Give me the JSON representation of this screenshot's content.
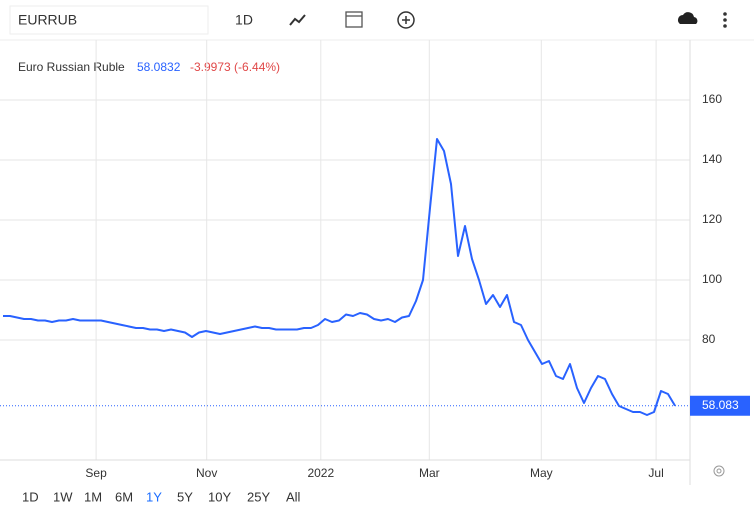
{
  "toolbar": {
    "symbol": "EURRUB",
    "interval": "1D"
  },
  "ranges": [
    "1D",
    "1W",
    "1M",
    "6M",
    "1Y",
    "5Y",
    "10Y",
    "25Y",
    "All"
  ],
  "chart_data": {
    "type": "line",
    "series": [
      {
        "name": "Euro Russian Ruble",
        "color": "#2962ff",
        "values": [
          88,
          88,
          87.5,
          87,
          87,
          86.5,
          86.5,
          86,
          86.5,
          86.5,
          87,
          86.5,
          86.5,
          86.5,
          86.5,
          86,
          85.5,
          85,
          84.5,
          84,
          84,
          83.5,
          83.5,
          83,
          83.5,
          83,
          82.5,
          81,
          82.5,
          83,
          82.5,
          82,
          82.5,
          83,
          83.5,
          84,
          84.5,
          84,
          84,
          83.5,
          83.5,
          83.5,
          83.5,
          84,
          84,
          85,
          87,
          86,
          86.5,
          88.5,
          88,
          89,
          88.5,
          87,
          86.5,
          87,
          86,
          87.5,
          88,
          93,
          100,
          124,
          147,
          143,
          132,
          108,
          118,
          107,
          100,
          92,
          95,
          91,
          95,
          86,
          85,
          80,
          76,
          72,
          73,
          68,
          67,
          72,
          64,
          59,
          64,
          68,
          67,
          62,
          58,
          57,
          56,
          56,
          55,
          56,
          63,
          62,
          58.0832
        ]
      }
    ],
    "last_value_label": "58.0832",
    "change_label": "-3.9973 (-6.44%)",
    "price_tag": "58.083",
    "xlim": [
      0,
      96
    ],
    "xticks": [
      {
        "value": 13.3,
        "label": "Sep"
      },
      {
        "value": 29.1,
        "label": "Nov"
      },
      {
        "value": 45.4,
        "label": "2022"
      },
      {
        "value": 60.9,
        "label": "Mar"
      },
      {
        "value": 76.9,
        "label": "May"
      },
      {
        "value": 93.3,
        "label": "Jul"
      }
    ],
    "ylim": [
      40,
      180
    ],
    "yticks": [
      80,
      100,
      120,
      140,
      160
    ],
    "grid": true
  }
}
